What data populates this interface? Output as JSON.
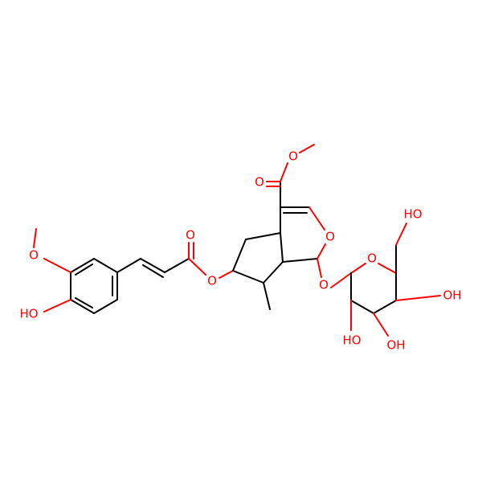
{
  "atoms": [
    {
      "label": "O"
    },
    {
      "label": "O"
    },
    {
      "label": "O"
    },
    {
      "label": "O"
    },
    {
      "label": "O"
    },
    {
      "label": "O"
    },
    {
      "label": "O"
    },
    {
      "label": "HO"
    },
    {
      "label": "OH"
    },
    {
      "label": "OH"
    },
    {
      "label": "HO"
    },
    {
      "label": "O"
    },
    {
      "label": "HO"
    }
  ]
}
